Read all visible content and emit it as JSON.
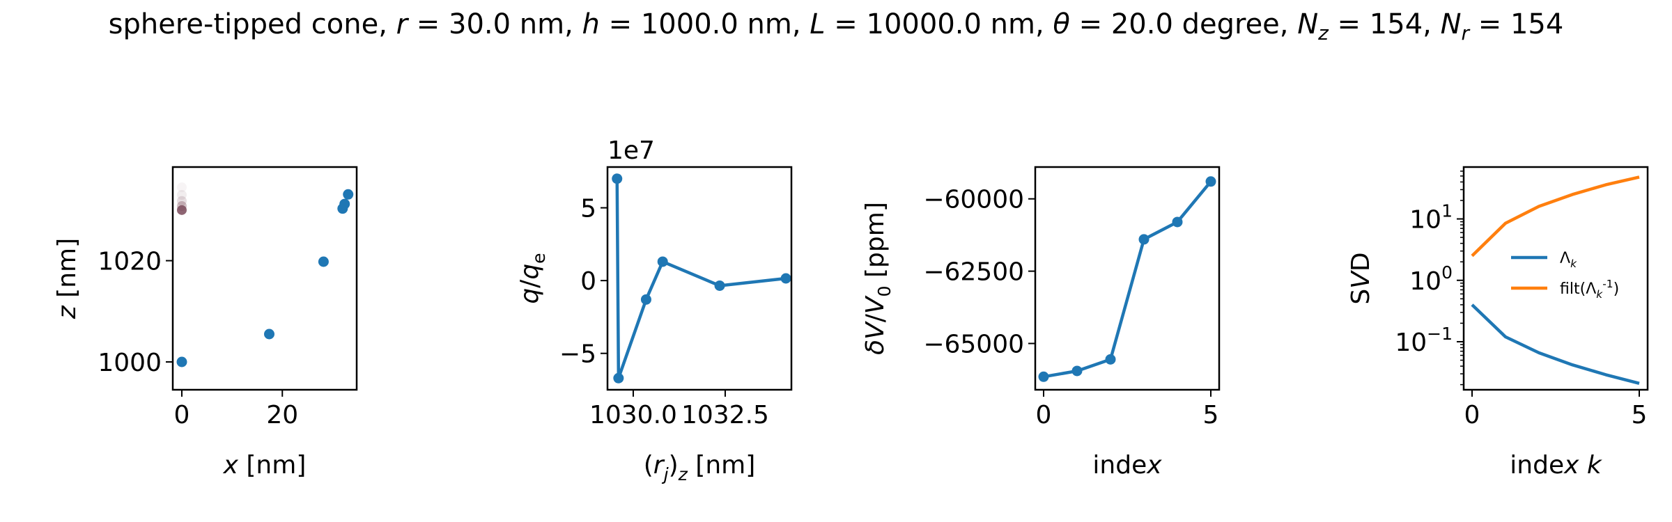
{
  "figure": {
    "title": "sphere-tipped cone, r = 30.0 nm, h = 1000.0 nm, L = 10000.0 nm, θ = 20.0 degree, N_z = 154, N_r = 154"
  },
  "colors": {
    "blue": "#1f77b4",
    "orange": "#ff7f0e",
    "faint_marker": "#7a4a5a"
  },
  "chart_data": [
    {
      "type": "scatter",
      "xlabel": "x [nm]",
      "ylabel": "z [nm]",
      "xlim": [
        -1.8,
        34.8
      ],
      "ylim": [
        994.5,
        1038.5
      ],
      "xticks": [
        0,
        20
      ],
      "yticks": [
        1000,
        1020
      ],
      "x": [
        0,
        17.4,
        28.2,
        32.0,
        32.4,
        33.1
      ],
      "y": [
        1000,
        1005.5,
        1019.8,
        1030.3,
        1031.2,
        1033.1
      ],
      "faint_points": [
        {
          "x": 0,
          "y": 1030.0,
          "opacity": 0.85
        },
        {
          "x": 0,
          "y": 1030.8,
          "opacity": 0.35
        },
        {
          "x": 0,
          "y": 1031.8,
          "opacity": 0.18
        },
        {
          "x": 0,
          "y": 1033.0,
          "opacity": 0.1
        },
        {
          "x": 0,
          "y": 1034.5,
          "opacity": 0.06
        }
      ]
    },
    {
      "type": "line",
      "xlabel": "(r_j)_z [nm]",
      "ylabel": "q/q_e",
      "offset_text": "1e7",
      "xlim": [
        1029.3,
        1034.3
      ],
      "ylim": [
        -7.5,
        7.8
      ],
      "xtick_values": [
        1030.0,
        1032.5
      ],
      "xtick_labels": [
        "1030.0",
        "1032.5"
      ],
      "yticks": [
        -5,
        0,
        5
      ],
      "x": [
        1029.56,
        1029.6,
        1030.35,
        1030.8,
        1032.35,
        1034.15
      ],
      "y": [
        7.0,
        -6.7,
        -1.3,
        1.3,
        -0.35,
        0.15
      ]
    },
    {
      "type": "line",
      "xlabel": "index",
      "ylabel": "δV/V_0 [ppm]",
      "xlim": [
        -0.25,
        5.25
      ],
      "ylim": [
        -66600,
        -58900
      ],
      "xticks": [
        0,
        5
      ],
      "ytick_values": [
        -65000,
        -62500,
        -60000
      ],
      "ytick_labels": [
        "−65000",
        "−62500",
        "−60000"
      ],
      "x": [
        0,
        1,
        2,
        3,
        4,
        5
      ],
      "y": [
        -66150,
        -65950,
        -65550,
        -61400,
        -60800,
        -59400
      ]
    },
    {
      "type": "line",
      "xlabel": "index k",
      "ylabel": "SVD",
      "yscale": "log",
      "xlim": [
        -0.25,
        5.25
      ],
      "ylim": [
        0.0165,
        70
      ],
      "xticks": [
        0,
        5
      ],
      "ytick_values": [
        0.1,
        1,
        10
      ],
      "legend_position": "center-left",
      "series": [
        {
          "name": "Λ_k",
          "color": "#1f77b4",
          "x": [
            0,
            1,
            2,
            3,
            4,
            5
          ],
          "y": [
            0.4,
            0.12,
            0.066,
            0.042,
            0.029,
            0.021
          ]
        },
        {
          "name": "filt(Λ_k^{-1})",
          "color": "#ff7f0e",
          "x": [
            0,
            1,
            2,
            3,
            4,
            5
          ],
          "y": [
            2.5,
            8.5,
            16,
            25,
            36,
            48
          ]
        }
      ]
    }
  ]
}
